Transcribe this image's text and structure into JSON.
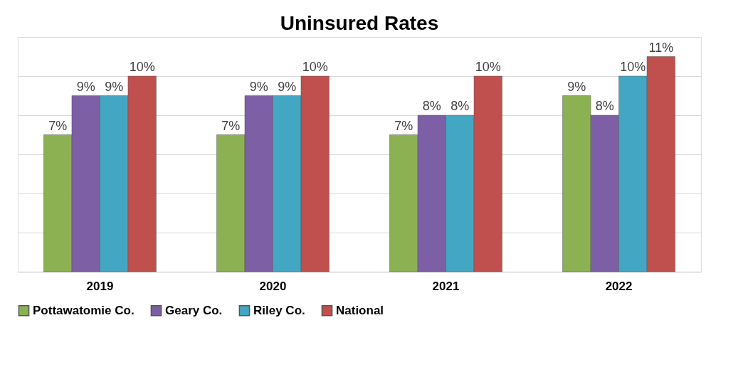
{
  "chart_data": {
    "type": "bar",
    "title": "Uninsured Rates",
    "categories": [
      "2019",
      "2020",
      "2021",
      "2022"
    ],
    "series": [
      {
        "name": "Pottawatomie Co.",
        "color": "#8cb153",
        "values": [
          7,
          7,
          7,
          9
        ],
        "value_labels": [
          "7%",
          "7%",
          "7%",
          "9%"
        ]
      },
      {
        "name": "Geary Co.",
        "color": "#7d5fa6",
        "values": [
          9,
          9,
          8,
          8
        ],
        "value_labels": [
          "9%",
          "9%",
          "8%",
          "8%"
        ]
      },
      {
        "name": "Riley Co.",
        "color": "#43a7c3",
        "values": [
          9,
          9,
          8,
          10
        ],
        "value_labels": [
          "9%",
          "9%",
          "8%",
          "10%"
        ]
      },
      {
        "name": "National",
        "color": "#c0504d",
        "values": [
          10,
          10,
          10,
          11
        ],
        "value_labels": [
          "10%",
          "10%",
          "10%",
          "11%"
        ]
      }
    ],
    "ylim": [
      0,
      12
    ],
    "yticks": [
      0,
      2,
      4,
      6,
      8,
      10,
      12
    ],
    "grid": "y",
    "tick_labels": "x",
    "legend": "bottom"
  }
}
